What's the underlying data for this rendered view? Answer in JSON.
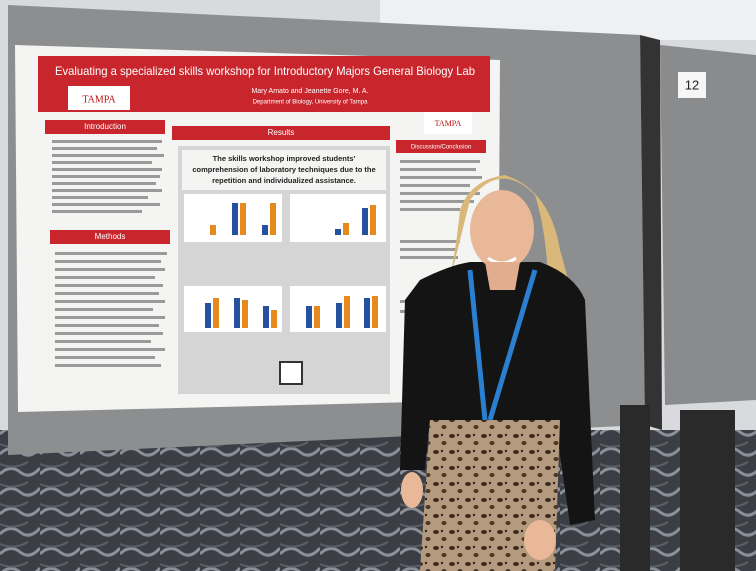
{
  "poster": {
    "title": "Evaluating a specialized skills workshop for Introductory Majors General Biology Lab",
    "authors": "Mary Amato and Jeanette Gore, M. A.",
    "department": "Department of Biology, University of Tampa",
    "logo": "TAMPA",
    "sections": [
      "Introduction",
      "Results",
      "Discussion/Conclusion",
      "Methods"
    ],
    "results_heading": [
      "The skills workshop improved students'",
      "comprehension of laboratory techniques due to the",
      "repetition and individualized assistance."
    ]
  },
  "board_number": "12"
}
